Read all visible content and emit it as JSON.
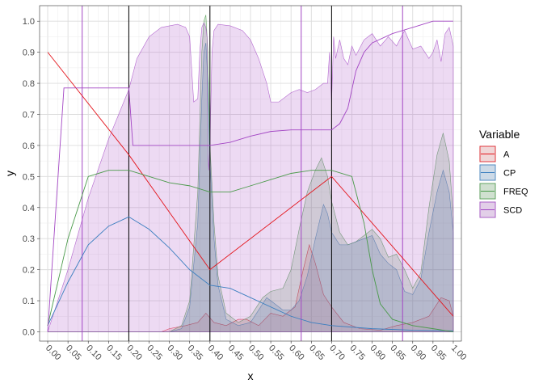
{
  "chart_data": {
    "type": "area",
    "xlabel": "x",
    "ylabel": "y",
    "xlim": [
      -0.02,
      1.02
    ],
    "ylim": [
      -0.03,
      1.05
    ],
    "grid": true,
    "legend_position": "right",
    "legend_title": "Variable",
    "x_ticks": [
      "0.00",
      "0.05",
      "0.10",
      "0.15",
      "0.20",
      "0.25",
      "0.30",
      "0.35",
      "0.40",
      "0.45",
      "0.50",
      "0.55",
      "0.60",
      "0.65",
      "0.70",
      "0.75",
      "0.80",
      "0.85",
      "0.90",
      "0.95",
      "1.00"
    ],
    "y_ticks": [
      "0.0",
      "0.1",
      "0.2",
      "0.3",
      "0.4",
      "0.5",
      "0.6",
      "0.7",
      "0.8",
      "0.9",
      "1.0"
    ],
    "vlines": [
      {
        "x": 0.085,
        "color": "#a346c4"
      },
      {
        "x": 0.2,
        "color": "#000000"
      },
      {
        "x": 0.4,
        "color": "#000000"
      },
      {
        "x": 0.625,
        "color": "#a346c4"
      },
      {
        "x": 0.7,
        "color": "#000000"
      },
      {
        "x": 0.875,
        "color": "#a346c4"
      }
    ],
    "series": [
      {
        "name": "A",
        "line_color": "#e4141b",
        "fill_color": "#e4141b",
        "fill_opacity": 0.12,
        "lines": [
          [
            [
              0,
              0.9
            ],
            [
              0.2,
              0.57
            ],
            [
              0.4,
              0.2
            ],
            [
              0.7,
              0.5
            ],
            [
              1.0,
              0.05
            ]
          ]
        ],
        "fill": [
          [
            0,
            0
          ],
          [
            0.28,
            0
          ],
          [
            0.3,
            0.01
          ],
          [
            0.34,
            0.02
          ],
          [
            0.37,
            0.03
          ],
          [
            0.39,
            0.06
          ],
          [
            0.41,
            0.03
          ],
          [
            0.44,
            0.02
          ],
          [
            0.47,
            0.04
          ],
          [
            0.49,
            0.04
          ],
          [
            0.52,
            0.02
          ],
          [
            0.55,
            0.06
          ],
          [
            0.58,
            0.05
          ],
          [
            0.61,
            0.08
          ],
          [
            0.63,
            0.2
          ],
          [
            0.645,
            0.28
          ],
          [
            0.66,
            0.22
          ],
          [
            0.68,
            0.12
          ],
          [
            0.7,
            0.08
          ],
          [
            0.73,
            0.03
          ],
          [
            0.77,
            0.01
          ],
          [
            0.82,
            0.005
          ],
          [
            0.86,
            0.02
          ],
          [
            0.9,
            0.03
          ],
          [
            0.94,
            0.05
          ],
          [
            0.97,
            0.11
          ],
          [
            0.99,
            0.1
          ],
          [
            1.0,
            0.05
          ]
        ]
      },
      {
        "name": "CP",
        "line_color": "#3a7ebf",
        "fill_color": "#3a7ebf",
        "fill_opacity": 0.2,
        "lines": [
          [
            [
              0,
              0.02
            ],
            [
              0.05,
              0.16
            ],
            [
              0.1,
              0.28
            ],
            [
              0.15,
              0.34
            ],
            [
              0.2,
              0.37
            ],
            [
              0.25,
              0.33
            ],
            [
              0.3,
              0.27
            ],
            [
              0.35,
              0.2
            ],
            [
              0.4,
              0.15
            ],
            [
              0.45,
              0.14
            ],
            [
              0.5,
              0.11
            ],
            [
              0.55,
              0.08
            ],
            [
              0.6,
              0.05
            ],
            [
              0.65,
              0.03
            ],
            [
              0.7,
              0.02
            ],
            [
              0.8,
              0.01
            ],
            [
              0.9,
              0.005
            ],
            [
              1.0,
              0.003
            ]
          ]
        ],
        "fill": [
          [
            0,
            0
          ],
          [
            0.3,
            0
          ],
          [
            0.33,
            0.01
          ],
          [
            0.35,
            0.08
          ],
          [
            0.37,
            0.35
          ],
          [
            0.38,
            0.75
          ],
          [
            0.385,
            0.9
          ],
          [
            0.39,
            0.93
          ],
          [
            0.395,
            0.8
          ],
          [
            0.4,
            0.55
          ],
          [
            0.41,
            0.3
          ],
          [
            0.42,
            0.15
          ],
          [
            0.44,
            0.04
          ],
          [
            0.47,
            0.02
          ],
          [
            0.5,
            0.03
          ],
          [
            0.52,
            0.07
          ],
          [
            0.54,
            0.11
          ],
          [
            0.56,
            0.09
          ],
          [
            0.58,
            0.07
          ],
          [
            0.6,
            0.07
          ],
          [
            0.62,
            0.1
          ],
          [
            0.64,
            0.18
          ],
          [
            0.66,
            0.3
          ],
          [
            0.68,
            0.41
          ],
          [
            0.69,
            0.38
          ],
          [
            0.7,
            0.32
          ],
          [
            0.72,
            0.28
          ],
          [
            0.74,
            0.28
          ],
          [
            0.76,
            0.29
          ],
          [
            0.78,
            0.3
          ],
          [
            0.8,
            0.31
          ],
          [
            0.82,
            0.25
          ],
          [
            0.84,
            0.22
          ],
          [
            0.86,
            0.2
          ],
          [
            0.88,
            0.13
          ],
          [
            0.9,
            0.12
          ],
          [
            0.92,
            0.17
          ],
          [
            0.94,
            0.32
          ],
          [
            0.96,
            0.45
          ],
          [
            0.975,
            0.52
          ],
          [
            0.99,
            0.45
          ],
          [
            1.0,
            0.32
          ]
        ]
      },
      {
        "name": "FREQ",
        "line_color": "#4a9a4a",
        "fill_color": "#4a9a4a",
        "fill_opacity": 0.2,
        "lines": [
          [
            [
              0,
              0.02
            ],
            [
              0.05,
              0.3
            ],
            [
              0.1,
              0.5
            ],
            [
              0.15,
              0.52
            ],
            [
              0.2,
              0.52
            ],
            [
              0.25,
              0.5
            ],
            [
              0.3,
              0.48
            ],
            [
              0.35,
              0.47
            ],
            [
              0.4,
              0.45
            ],
            [
              0.45,
              0.45
            ],
            [
              0.5,
              0.47
            ],
            [
              0.55,
              0.49
            ],
            [
              0.6,
              0.51
            ],
            [
              0.65,
              0.52
            ],
            [
              0.7,
              0.52
            ],
            [
              0.75,
              0.5
            ],
            [
              0.78,
              0.35
            ],
            [
              0.8,
              0.2
            ],
            [
              0.82,
              0.09
            ],
            [
              0.85,
              0.04
            ],
            [
              0.9,
              0.02
            ],
            [
              0.95,
              0.01
            ],
            [
              1.0,
              0.0
            ]
          ]
        ],
        "fill": [
          [
            0,
            0
          ],
          [
            0.3,
            0
          ],
          [
            0.33,
            0.02
          ],
          [
            0.35,
            0.1
          ],
          [
            0.37,
            0.45
          ],
          [
            0.38,
            0.9
          ],
          [
            0.385,
            1.0
          ],
          [
            0.39,
            1.02
          ],
          [
            0.395,
            0.9
          ],
          [
            0.4,
            0.6
          ],
          [
            0.41,
            0.35
          ],
          [
            0.42,
            0.18
          ],
          [
            0.44,
            0.06
          ],
          [
            0.47,
            0.03
          ],
          [
            0.5,
            0.05
          ],
          [
            0.53,
            0.11
          ],
          [
            0.55,
            0.13
          ],
          [
            0.58,
            0.14
          ],
          [
            0.6,
            0.2
          ],
          [
            0.62,
            0.33
          ],
          [
            0.64,
            0.45
          ],
          [
            0.66,
            0.52
          ],
          [
            0.675,
            0.56
          ],
          [
            0.69,
            0.5
          ],
          [
            0.7,
            0.42
          ],
          [
            0.72,
            0.32
          ],
          [
            0.74,
            0.28
          ],
          [
            0.76,
            0.29
          ],
          [
            0.78,
            0.31
          ],
          [
            0.8,
            0.33
          ],
          [
            0.82,
            0.3
          ],
          [
            0.84,
            0.24
          ],
          [
            0.86,
            0.25
          ],
          [
            0.88,
            0.2
          ],
          [
            0.9,
            0.14
          ],
          [
            0.92,
            0.19
          ],
          [
            0.94,
            0.4
          ],
          [
            0.96,
            0.57
          ],
          [
            0.975,
            0.64
          ],
          [
            0.99,
            0.55
          ],
          [
            1.0,
            0.37
          ]
        ]
      },
      {
        "name": "SCD",
        "line_color": "#a346c4",
        "fill_color": "#a346c4",
        "fill_opacity": 0.2,
        "lines": [
          [
            [
              0,
              0
            ],
            [
              0.04,
              0.785
            ],
            [
              0.2,
              0.785
            ],
            [
              0.21,
              0.6
            ],
            [
              0.4,
              0.6
            ],
            [
              0.45,
              0.61
            ],
            [
              0.5,
              0.63
            ],
            [
              0.55,
              0.645
            ],
            [
              0.6,
              0.65
            ],
            [
              0.65,
              0.65
            ],
            [
              0.7,
              0.65
            ],
            [
              0.72,
              0.67
            ],
            [
              0.74,
              0.72
            ],
            [
              0.76,
              0.84
            ],
            [
              0.78,
              0.9
            ],
            [
              0.8,
              0.93
            ],
            [
              0.85,
              0.96
            ],
            [
              0.9,
              0.98
            ],
            [
              0.95,
              1.0
            ],
            [
              1.0,
              1.0
            ]
          ]
        ],
        "fill": [
          [
            0,
            0
          ],
          [
            0.05,
            0.2
          ],
          [
            0.1,
            0.43
          ],
          [
            0.15,
            0.62
          ],
          [
            0.2,
            0.78
          ],
          [
            0.22,
            0.88
          ],
          [
            0.25,
            0.95
          ],
          [
            0.28,
            0.98
          ],
          [
            0.32,
            0.99
          ],
          [
            0.34,
            0.98
          ],
          [
            0.35,
            0.95
          ],
          [
            0.36,
            0.74
          ],
          [
            0.37,
            0.75
          ],
          [
            0.375,
            0.9
          ],
          [
            0.38,
            0.98
          ],
          [
            0.385,
            0.995
          ],
          [
            0.39,
            0.98
          ],
          [
            0.393,
            0.95
          ],
          [
            0.395,
            0.58
          ],
          [
            0.397,
            0.52
          ],
          [
            0.4,
            0.6
          ],
          [
            0.405,
            0.9
          ],
          [
            0.41,
            0.97
          ],
          [
            0.42,
            0.99
          ],
          [
            0.45,
            0.985
          ],
          [
            0.48,
            0.97
          ],
          [
            0.5,
            0.94
          ],
          [
            0.52,
            0.88
          ],
          [
            0.54,
            0.8
          ],
          [
            0.55,
            0.74
          ],
          [
            0.57,
            0.74
          ],
          [
            0.6,
            0.77
          ],
          [
            0.62,
            0.78
          ],
          [
            0.64,
            0.77
          ],
          [
            0.66,
            0.78
          ],
          [
            0.68,
            0.8
          ],
          [
            0.69,
            0.8
          ],
          [
            0.695,
            0.9
          ],
          [
            0.7,
            0.74
          ],
          [
            0.705,
            0.95
          ],
          [
            0.71,
            0.88
          ],
          [
            0.72,
            0.94
          ],
          [
            0.73,
            0.88
          ],
          [
            0.74,
            0.86
          ],
          [
            0.75,
            0.92
          ],
          [
            0.76,
            0.89
          ],
          [
            0.78,
            0.94
          ],
          [
            0.8,
            0.96
          ],
          [
            0.82,
            0.92
          ],
          [
            0.84,
            0.95
          ],
          [
            0.86,
            0.92
          ],
          [
            0.88,
            0.97
          ],
          [
            0.9,
            0.91
          ],
          [
            0.92,
            0.92
          ],
          [
            0.94,
            0.88
          ],
          [
            0.95,
            0.9
          ],
          [
            0.96,
            0.94
          ],
          [
            0.97,
            0.87
          ],
          [
            0.98,
            0.96
          ],
          [
            0.99,
            0.98
          ],
          [
            1.0,
            0.92
          ]
        ]
      }
    ]
  }
}
